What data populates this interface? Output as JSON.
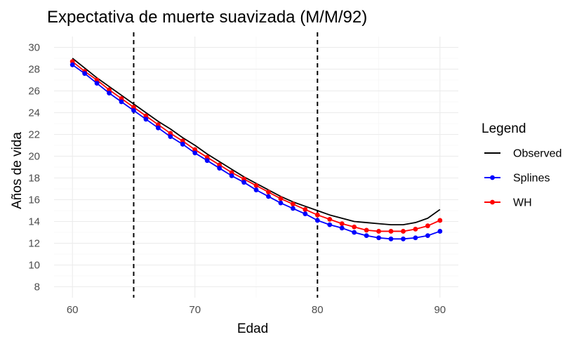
{
  "chart_data": {
    "type": "line",
    "title": "Expectativa de muerte suavizada (M/M/92)",
    "xlabel": "Edad",
    "ylabel": "Años de vida",
    "xlim": [
      58.5,
      91.5
    ],
    "ylim": [
      7,
      31
    ],
    "x_ticks": [
      60,
      70,
      80,
      90
    ],
    "y_ticks": [
      8,
      10,
      12,
      14,
      16,
      18,
      20,
      22,
      24,
      26,
      28,
      30
    ],
    "grid": true,
    "vlines": [
      65,
      80
    ],
    "legend": {
      "title": "Legend",
      "placement": "right",
      "entries": [
        "Observed",
        "Splines",
        "WH"
      ]
    },
    "x": [
      60,
      61,
      62,
      63,
      64,
      65,
      66,
      67,
      68,
      69,
      70,
      71,
      72,
      73,
      74,
      75,
      76,
      77,
      78,
      79,
      80,
      81,
      82,
      83,
      84,
      85,
      86,
      87,
      88,
      89,
      90
    ],
    "series": [
      {
        "name": "Observed",
        "color": "#000000",
        "markers": false,
        "values": [
          29.0,
          28.1,
          27.2,
          26.4,
          25.6,
          24.8,
          24.0,
          23.2,
          22.5,
          21.7,
          21.0,
          20.2,
          19.5,
          18.8,
          18.1,
          17.5,
          16.9,
          16.3,
          15.8,
          15.4,
          15.0,
          14.6,
          14.3,
          14.0,
          13.9,
          13.8,
          13.7,
          13.7,
          13.9,
          14.3,
          15.1
        ]
      },
      {
        "name": "Splines",
        "color": "#0000ff",
        "markers": true,
        "values": [
          28.4,
          27.6,
          26.7,
          25.8,
          25.0,
          24.2,
          23.4,
          22.6,
          21.8,
          21.1,
          20.3,
          19.6,
          18.9,
          18.2,
          17.6,
          16.9,
          16.3,
          15.7,
          15.2,
          14.7,
          14.1,
          13.7,
          13.4,
          13.0,
          12.7,
          12.5,
          12.4,
          12.4,
          12.5,
          12.7,
          13.1
        ]
      },
      {
        "name": "WH",
        "color": "#ff0000",
        "markers": true,
        "values": [
          28.7,
          27.8,
          27.0,
          26.1,
          25.3,
          24.5,
          23.7,
          22.9,
          22.1,
          21.4,
          20.6,
          19.9,
          19.2,
          18.5,
          17.9,
          17.3,
          16.7,
          16.1,
          15.6,
          15.1,
          14.6,
          14.2,
          13.8,
          13.5,
          13.2,
          13.1,
          13.1,
          13.1,
          13.3,
          13.6,
          14.1
        ]
      }
    ]
  }
}
